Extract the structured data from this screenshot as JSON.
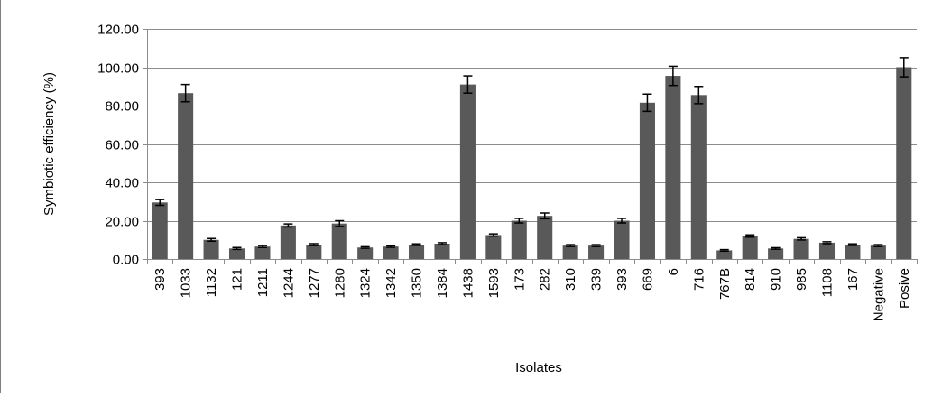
{
  "chart_data": {
    "type": "bar",
    "xlabel": "Isolates",
    "ylabel": "Symbiotic efficiency (%)",
    "ylim": [
      0,
      120
    ],
    "yticks": [
      "0.00",
      "20.00",
      "40.00",
      "60.00",
      "80.00",
      "100.00",
      "120.00"
    ],
    "grid": "horizontal",
    "legend": "none",
    "bar_color": "#595959",
    "categories": [
      "393",
      "1033",
      "1132",
      "121",
      "1211",
      "1244",
      "1277",
      "1280",
      "1324",
      "1342",
      "1350",
      "1384",
      "1438",
      "1593",
      "173",
      "282",
      "310",
      "339",
      "393",
      "669",
      "6",
      "716",
      "767B",
      "814",
      "910",
      "985",
      "1108",
      "167",
      "Negative",
      "Posive"
    ],
    "values": [
      29.5,
      86.5,
      10,
      5.5,
      6.5,
      17.5,
      7.5,
      18.5,
      6,
      6.5,
      7.5,
      8,
      91,
      12.5,
      20,
      22.5,
      7,
      7,
      20,
      81.5,
      95.5,
      85.5,
      4.5,
      12,
      5.5,
      10.5,
      8.5,
      7.5,
      7,
      100
    ],
    "errors": [
      1.5,
      4.5,
      0.7,
      0.5,
      0.5,
      0.8,
      0.5,
      1.5,
      0.4,
      0.4,
      0.4,
      0.5,
      4.5,
      0.6,
      1.2,
      1.5,
      0.5,
      0.5,
      1.2,
      4.5,
      5,
      4.5,
      0.4,
      0.6,
      0.4,
      0.6,
      0.5,
      0.4,
      0.5,
      5
    ]
  }
}
